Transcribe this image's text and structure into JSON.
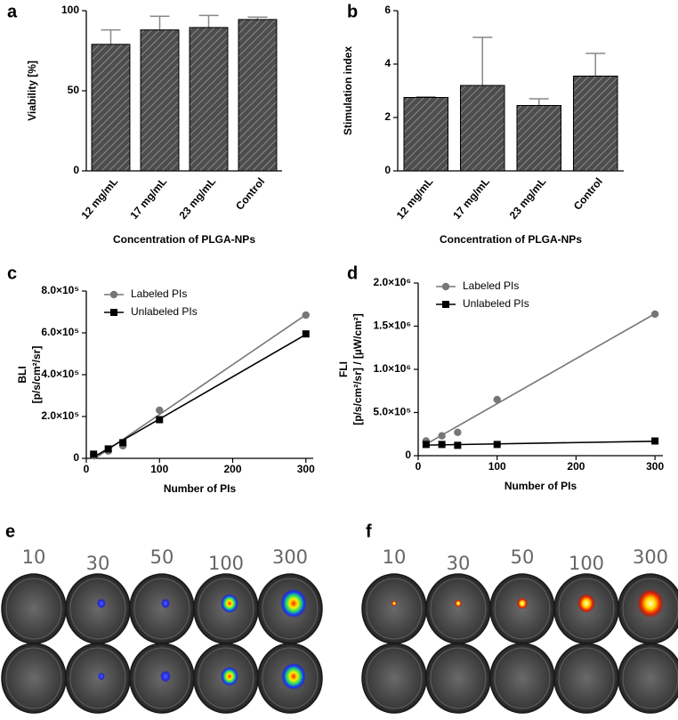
{
  "chart_data": [
    {
      "type": "bar",
      "panel": "a",
      "ylabel": [
        "Viability [%]"
      ],
      "xlabel": "Concentration of PLGA-NPs",
      "categories": [
        "12 mg/mL",
        "17 mg/mL",
        "23 mg/mL",
        "Control"
      ],
      "values": [
        79,
        88,
        89.5,
        94.5
      ],
      "errors": [
        9,
        8.5,
        7.5,
        1.5
      ],
      "color": "#4d4d4d",
      "ylim": [
        0,
        100
      ],
      "yticks": [
        0,
        50,
        100
      ]
    },
    {
      "type": "bar",
      "panel": "b",
      "ylabel": [
        "Stimulation index"
      ],
      "xlabel": "Concentration of PLGA-NPs",
      "categories": [
        "12 mg/mL",
        "17 mg/mL",
        "23 mg/mL",
        "Control"
      ],
      "values": [
        2.75,
        3.2,
        2.45,
        3.55
      ],
      "errors": [
        0.02,
        1.8,
        0.25,
        0.85
      ],
      "color": "#4d4d4d",
      "ylim": [
        0,
        6
      ],
      "yticks": [
        0,
        2,
        4,
        6
      ]
    },
    {
      "type": "scatter",
      "panel": "c",
      "ylabel": [
        "BLI",
        "[p/s/cm²/sr]"
      ],
      "xlabel": "Number of PIs",
      "x": [
        10,
        30,
        50,
        100,
        300
      ],
      "series": [
        {
          "name": "Labeled PIs",
          "color": "#777777",
          "marker": "circle",
          "values": [
            15000,
            35000,
            60000,
            230000,
            685000
          ]
        },
        {
          "name": "Unlabeled  PIs",
          "color": "#000000",
          "marker": "square",
          "values": [
            20000,
            45000,
            75000,
            185000,
            595000
          ]
        }
      ],
      "xlim": [
        0,
        310
      ],
      "xticks": [
        0,
        100,
        200,
        300
      ],
      "ylim": [
        0,
        800000
      ],
      "yticks": [
        0,
        {
          "value": 200000,
          "label": "2.0×10⁵"
        },
        {
          "value": 400000,
          "label": "4.0×10⁵"
        },
        {
          "value": 600000,
          "label": "6.0×10⁵"
        },
        {
          "value": 800000,
          "label": "8.0×10⁵"
        }
      ],
      "legend": "upper left"
    },
    {
      "type": "scatter",
      "panel": "d",
      "ylabel": [
        "FLI",
        "[p/s/cm²/sr] / [µW/cm²]"
      ],
      "xlabel": "Number of PIs",
      "x": [
        10,
        30,
        50,
        100,
        300
      ],
      "series": [
        {
          "name": "Labeled PIs",
          "color": "#777777",
          "marker": "circle",
          "values": [
            170000,
            230000,
            270000,
            650000,
            1640000
          ]
        },
        {
          "name": "Unlabeled  PIs",
          "color": "#000000",
          "marker": "square",
          "values": [
            130000,
            130000,
            120000,
            130000,
            170000
          ]
        }
      ],
      "xlim": [
        0,
        310
      ],
      "xticks": [
        0,
        100,
        200,
        300
      ],
      "ylim": [
        0,
        2000000
      ],
      "yticks": [
        0,
        {
          "value": 500000,
          "label": "5.0×10⁵"
        },
        {
          "value": 1000000,
          "label": "1.0×10⁶"
        },
        {
          "value": 1500000,
          "label": "1.5×10⁶"
        },
        {
          "value": 2000000,
          "label": "2.0×10⁶"
        }
      ],
      "legend": "upper left"
    }
  ],
  "image_panels": [
    {
      "panel": "e",
      "labels": [
        "10",
        "30",
        "50",
        "100",
        "300"
      ]
    },
    {
      "panel": "f",
      "labels": [
        "10",
        "30",
        "50",
        "100",
        "300"
      ]
    }
  ]
}
